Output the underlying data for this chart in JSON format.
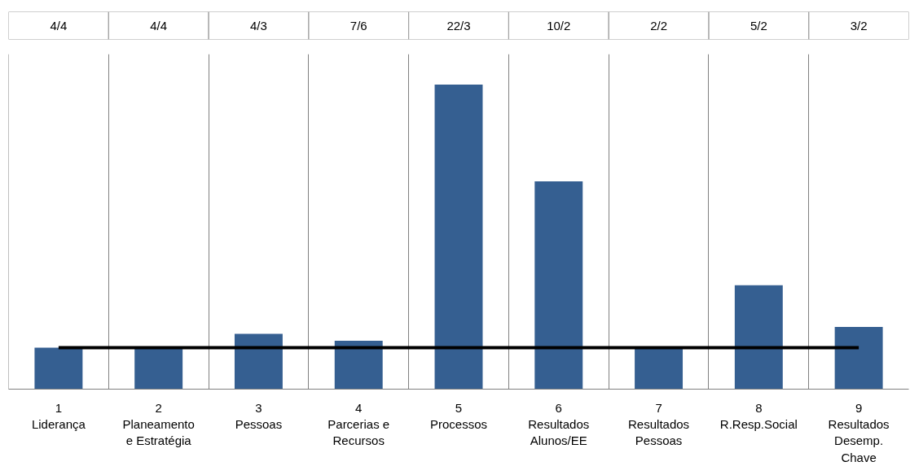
{
  "chart_data": {
    "type": "bar",
    "categories": [
      "1\nLiderança",
      "2\nPlaneamento\ne Estratégia",
      "3\nPessoas",
      "4\nParcerias e\nRecursos",
      "5\nProcessos",
      "6\nResultados\nAlunos/EE",
      "7\nResultados\nPessoas",
      "8\nR.Resp.Social",
      "9\nResultados\nDesemp.\nChave"
    ],
    "values": [
      1,
      1,
      1.333,
      1.167,
      7.333,
      5,
      1,
      2.5,
      1.5
    ],
    "value_labels": [
      "4/4",
      "4/4",
      "4/3",
      "7/6",
      "22/3",
      "10/2",
      "2/2",
      "5/2",
      "3/2"
    ],
    "color": "#355f91",
    "ref_lines": [
      {
        "axis": "y",
        "value": 1,
        "color": "#000000"
      }
    ],
    "grid": "x"
  }
}
